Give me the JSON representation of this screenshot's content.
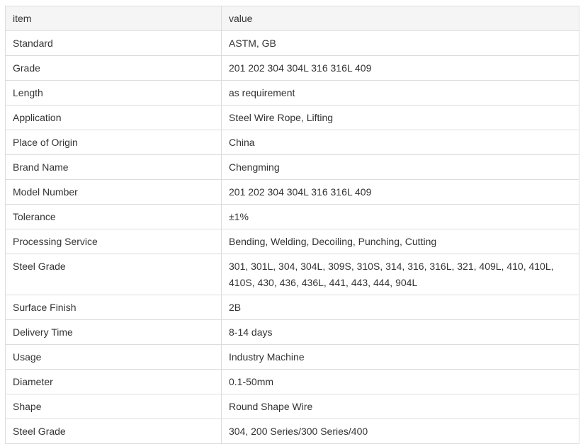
{
  "table": {
    "headers": [
      "item",
      "value"
    ],
    "rows": [
      [
        "Standard",
        "ASTM, GB"
      ],
      [
        "Grade",
        "201 202 304 304L 316 316L 409"
      ],
      [
        "Length",
        "as requirement"
      ],
      [
        "Application",
        "Steel Wire Rope, Lifting"
      ],
      [
        "Place of Origin",
        "China"
      ],
      [
        "Brand Name",
        "Chengming"
      ],
      [
        "Model Number",
        "201 202 304 304L 316 316L 409"
      ],
      [
        "Tolerance",
        "±1%"
      ],
      [
        "Processing Service",
        "Bending, Welding, Decoiling, Punching, Cutting"
      ],
      [
        "Steel Grade",
        "301, 301L, 304, 304L, 309S, 310S, 314, 316, 316L, 321, 409L, 410, 410L, 410S, 430, 436, 436L, 441, 443, 444, 904L"
      ],
      [
        "Surface Finish",
        "2B"
      ],
      [
        "Delivery Time",
        "8-14 days"
      ],
      [
        "Usage",
        "Industry Machine"
      ],
      [
        "Diameter",
        "0.1-50mm"
      ],
      [
        "Shape",
        "Round Shape Wire"
      ],
      [
        "Steel Grade",
        "304, 200 Series/300 Series/400"
      ]
    ]
  }
}
